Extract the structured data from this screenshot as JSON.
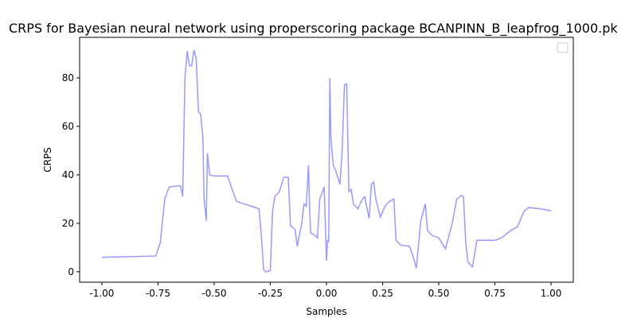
{
  "chart_data": {
    "type": "line",
    "title": "CRPS for Bayesian neural network using properscoring package BCANPINN_B_leapfrog_1000.pk",
    "xlabel": "Samples",
    "ylabel": "CRPS",
    "legend": "upper right",
    "xlim": [
      -1.099,
      1.099
    ],
    "ylim": [
      -4.3,
      96.7
    ],
    "xticks": [
      {
        "value": -1,
        "label": "-1.00"
      },
      {
        "value": -0.75,
        "label": "-0.75"
      },
      {
        "value": -0.5,
        "label": "-0.50"
      },
      {
        "value": -0.25,
        "label": "-0.25"
      },
      {
        "value": 0,
        "label": "0.00"
      },
      {
        "value": 0.25,
        "label": "0.25"
      },
      {
        "value": 0.5,
        "label": "0.50"
      },
      {
        "value": 0.75,
        "label": "0.75"
      },
      {
        "value": 1,
        "label": "1.00"
      }
    ],
    "yticks": [
      0,
      20,
      40,
      60,
      80
    ],
    "x": [
      -1.0,
      -0.76,
      -0.74,
      -0.72,
      -0.7,
      -0.65,
      -0.64,
      -0.63,
      -0.62,
      -0.61,
      -0.6,
      -0.59,
      -0.58,
      -0.57,
      -0.56,
      -0.55,
      -0.545,
      -0.535,
      -0.53,
      -0.52,
      -0.5,
      -0.44,
      -0.42,
      -0.4,
      -0.35,
      -0.3,
      -0.29,
      -0.28,
      -0.27,
      -0.25,
      -0.24,
      -0.23,
      -0.21,
      -0.19,
      -0.17,
      -0.16,
      -0.14,
      -0.13,
      -0.11,
      -0.1,
      -0.09,
      -0.08,
      -0.075,
      -0.07,
      -0.05,
      -0.04,
      -0.03,
      -0.01,
      0.0,
      0.005,
      0.01,
      0.015,
      0.02,
      0.03,
      0.04,
      0.06,
      0.07,
      0.08,
      0.09,
      0.1,
      0.11,
      0.12,
      0.14,
      0.16,
      0.17,
      0.19,
      0.2,
      0.21,
      0.22,
      0.24,
      0.26,
      0.28,
      0.3,
      0.31,
      0.33,
      0.37,
      0.39,
      0.4,
      0.42,
      0.44,
      0.45,
      0.47,
      0.5,
      0.53,
      0.56,
      0.58,
      0.6,
      0.61,
      0.62,
      0.63,
      0.65,
      0.67,
      0.75,
      0.78,
      0.82,
      0.85,
      0.88,
      0.9,
      0.95,
      1.0
    ],
    "series": [
      {
        "color": "#9999ff",
        "values": [
          6,
          6.5,
          12,
          30,
          35,
          35.5,
          31,
          80,
          91,
          85,
          85,
          91.5,
          88,
          66,
          65,
          55,
          30,
          21,
          49,
          40,
          39.5,
          39.5,
          34,
          29,
          27.5,
          26,
          15,
          1,
          0,
          0.5,
          25,
          31,
          33,
          39,
          39,
          19,
          17.5,
          10.5,
          20,
          28,
          27,
          44,
          26,
          16,
          15,
          14,
          30,
          35,
          4.5,
          13,
          12.5,
          80,
          55,
          44,
          42,
          36,
          50,
          77,
          77.5,
          33,
          34,
          28,
          26,
          30,
          31,
          22,
          36,
          37,
          30,
          22.5,
          27,
          29,
          30,
          13,
          11,
          10.5,
          5,
          1.5,
          21,
          28,
          17,
          15,
          14,
          9.5,
          20,
          30,
          31.5,
          31,
          12,
          4,
          2,
          13,
          13,
          14,
          17,
          18.5,
          25,
          26.5,
          26,
          25.2
        ]
      }
    ]
  }
}
